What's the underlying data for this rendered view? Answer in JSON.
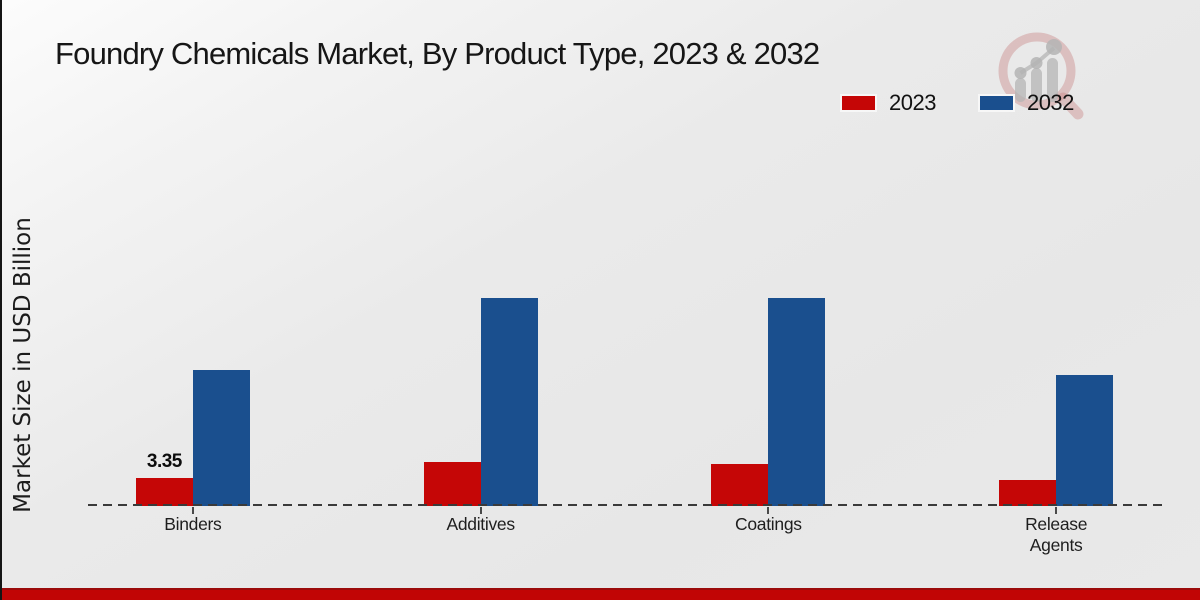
{
  "chart_data": {
    "type": "bar",
    "title": "Foundry Chemicals Market, By Product Type, 2023 & 2032",
    "ylabel": "Market Size in USD Billion",
    "xlabel": "",
    "categories": [
      "Binders",
      "Additives",
      "Coatings",
      "Release Agents"
    ],
    "series": [
      {
        "name": "2023",
        "color": "#c50606",
        "values": [
          3.35,
          5.25,
          5.0,
          3.1
        ],
        "value_labels": [
          "3.35",
          "",
          "",
          ""
        ]
      },
      {
        "name": "2032",
        "color": "#1a4f8e",
        "values": [
          16.3,
          24.9,
          24.9,
          15.7
        ],
        "value_labels": [
          "",
          "",
          "",
          ""
        ]
      }
    ],
    "ylim": [
      0,
      27
    ],
    "grid": false,
    "legend_position": "top-right",
    "axis_style": "dashed-baseline-only"
  },
  "branding": {
    "logo_icon": "magnifier-bar-chart-logo",
    "footer_strip_color": "#c10505"
  },
  "colors": {
    "series_2023": "#c50606",
    "series_2032": "#1a4f8e",
    "background": "#e9e9e9",
    "baseline": "#3a3a3a"
  }
}
